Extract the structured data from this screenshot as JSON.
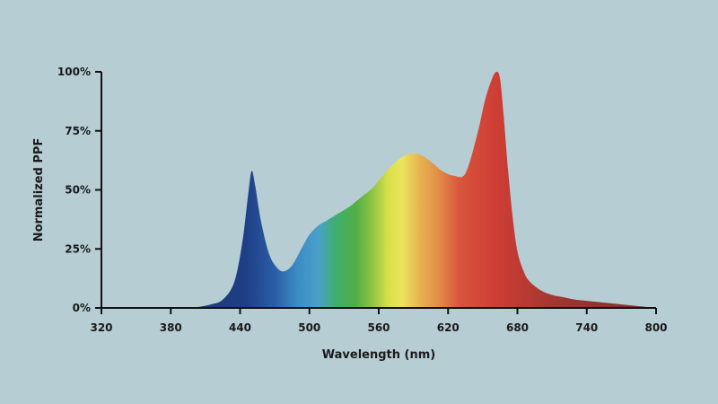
{
  "chart_data": {
    "type": "area",
    "title": "",
    "xlabel": "Wavelength (nm)",
    "ylabel": "Normalized PPF",
    "xlim": [
      320,
      800
    ],
    "ylim": [
      0,
      100
    ],
    "x_ticks": [
      320,
      380,
      440,
      500,
      560,
      620,
      680,
      740,
      800
    ],
    "x_tick_labels": [
      "320",
      "380",
      "440",
      "500",
      "560",
      "620",
      "680",
      "740",
      "800"
    ],
    "y_ticks": [
      0,
      25,
      50,
      75,
      100
    ],
    "y_tick_labels": [
      "0%",
      "25%",
      "50%",
      "75%",
      "100%"
    ],
    "grid": false,
    "background": "#b5cdd3",
    "series": [
      {
        "x": [
          395,
          405,
          415,
          425,
          435,
          442,
          447,
          450,
          453,
          458,
          465,
          472,
          478,
          485,
          493,
          500,
          508,
          515,
          525,
          535,
          545,
          555,
          565,
          575,
          585,
          595,
          605,
          615,
          625,
          635,
          645,
          652,
          658,
          662,
          665,
          668,
          672,
          676,
          680,
          685,
          690,
          700,
          710,
          720,
          730,
          740,
          760,
          780,
          800
        ],
        "y": [
          0,
          0.5,
          1.5,
          3.5,
          11,
          28,
          48,
          58,
          52,
          37,
          23,
          17,
          15.5,
          18,
          25,
          31,
          35,
          37,
          40,
          43,
          47,
          51,
          57,
          62,
          65,
          65,
          62,
          58,
          56,
          57,
          73,
          88,
          97,
          100,
          97,
          82,
          58,
          38,
          24,
          16,
          11.5,
          7.5,
          5.5,
          4.5,
          3.5,
          3,
          2,
          1,
          0
        ]
      }
    ],
    "color_stops": [
      {
        "x": 395,
        "color": "#1f3a73"
      },
      {
        "x": 445,
        "color": "#1e3f86"
      },
      {
        "x": 470,
        "color": "#2a5da6"
      },
      {
        "x": 490,
        "color": "#3b8dc6"
      },
      {
        "x": 508,
        "color": "#4aa0c8"
      },
      {
        "x": 522,
        "color": "#3fae72"
      },
      {
        "x": 540,
        "color": "#4fae45"
      },
      {
        "x": 555,
        "color": "#93c444"
      },
      {
        "x": 568,
        "color": "#d9df4c"
      },
      {
        "x": 580,
        "color": "#ebe55b"
      },
      {
        "x": 595,
        "color": "#e7b551"
      },
      {
        "x": 612,
        "color": "#e18d48"
      },
      {
        "x": 630,
        "color": "#d8553c"
      },
      {
        "x": 660,
        "color": "#cf3e35"
      },
      {
        "x": 720,
        "color": "#9c3530"
      },
      {
        "x": 800,
        "color": "#7a2f2c"
      }
    ]
  }
}
